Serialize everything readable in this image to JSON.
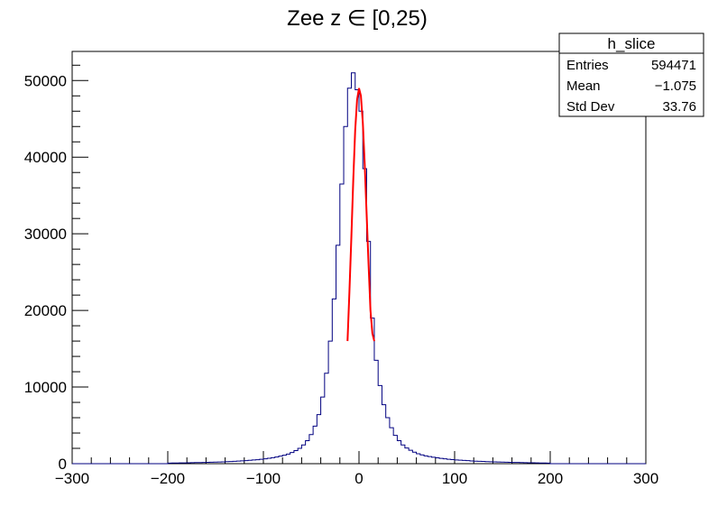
{
  "chart_data": {
    "type": "histogram",
    "title": "Zee z ∈ [0,25)",
    "xlabel": "",
    "ylabel": "",
    "xlim": [
      -300,
      300
    ],
    "ylim": [
      0,
      53800
    ],
    "x_ticks": [
      -300,
      -200,
      -100,
      0,
      100,
      200,
      300
    ],
    "y_ticks": [
      0,
      10000,
      20000,
      30000,
      40000,
      50000
    ],
    "grid": false,
    "bin_width": 4,
    "line_color": "#000080",
    "fit_color": "#ff0000",
    "histogram": {
      "name": "h_slice",
      "bin_centers": [
        -198,
        -194,
        -190,
        -186,
        -182,
        -178,
        -174,
        -170,
        -166,
        -162,
        -158,
        -154,
        -150,
        -146,
        -142,
        -138,
        -134,
        -130,
        -126,
        -122,
        -118,
        -114,
        -110,
        -106,
        -102,
        -98,
        -94,
        -90,
        -86,
        -82,
        -78,
        -74,
        -70,
        -66,
        -62,
        -58,
        -54,
        -50,
        -46,
        -42,
        -38,
        -34,
        -30,
        -26,
        -22,
        -18,
        -14,
        -10,
        -6,
        -2,
        2,
        6,
        10,
        14,
        18,
        22,
        26,
        30,
        34,
        38,
        42,
        46,
        50,
        54,
        58,
        62,
        66,
        70,
        74,
        78,
        82,
        86,
        90,
        94,
        98,
        102,
        106,
        110,
        114,
        118,
        122,
        126,
        130,
        134,
        138,
        142,
        146,
        150,
        154,
        158,
        162,
        166,
        170,
        174,
        178,
        182,
        186,
        190,
        194,
        198
      ],
      "values": [
        80,
        90,
        95,
        100,
        110,
        120,
        130,
        140,
        150,
        160,
        175,
        190,
        205,
        220,
        240,
        260,
        285,
        310,
        340,
        370,
        400,
        440,
        480,
        520,
        570,
        630,
        700,
        780,
        870,
        980,
        1100,
        1250,
        1450,
        1700,
        2000,
        2450,
        3000,
        3800,
        4900,
        6400,
        8700,
        11800,
        16000,
        21500,
        28500,
        36500,
        44000,
        49000,
        51000,
        48800,
        46000,
        38500,
        29000,
        19000,
        13500,
        10200,
        7700,
        6000,
        4700,
        3700,
        3000,
        2450,
        2050,
        1750,
        1500,
        1300,
        1150,
        1020,
        920,
        840,
        760,
        690,
        630,
        580,
        530,
        490,
        450,
        420,
        390,
        360,
        330,
        310,
        290,
        270,
        250,
        235,
        220,
        205,
        190,
        175,
        165,
        155,
        145,
        135,
        125,
        115,
        105,
        95,
        85,
        80
      ]
    },
    "fit": {
      "x": [
        -12,
        -10,
        -8,
        -6,
        -4,
        -2,
        0,
        2,
        4,
        6,
        8,
        10,
        12,
        14,
        16
      ],
      "y": [
        16000,
        22500,
        29500,
        37000,
        43500,
        47500,
        49000,
        48000,
        44500,
        39000,
        32500,
        26000,
        20000,
        17000,
        16000
      ]
    },
    "stats": {
      "title": "h_slice",
      "rows": [
        {
          "label": "Entries",
          "value": "594471"
        },
        {
          "label": "Mean",
          "value": "−1.075"
        },
        {
          "label": "Std Dev",
          "value": "33.76"
        }
      ]
    }
  }
}
